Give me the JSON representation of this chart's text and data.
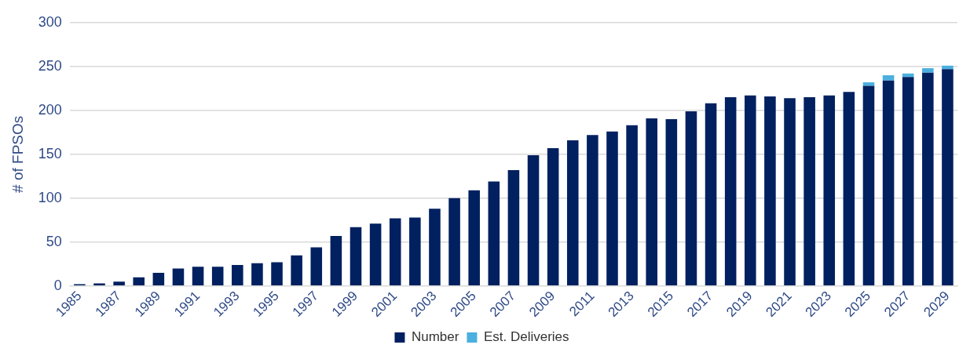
{
  "chart_data": {
    "type": "bar",
    "stacked": true,
    "ylabel": "# of FPSOs",
    "categories": [
      "1985",
      null,
      "1987",
      null,
      "1989",
      null,
      "1991",
      null,
      "1993",
      null,
      "1995",
      null,
      "1997",
      null,
      "1999",
      null,
      "2001",
      null,
      "2003",
      null,
      "2005",
      null,
      "2007",
      null,
      "2009",
      null,
      "2011",
      null,
      "2013",
      null,
      "2015",
      null,
      "2017",
      null,
      "2019",
      null,
      "2021",
      null,
      "2023",
      null,
      "2025",
      null,
      "2027",
      null,
      "2029"
    ],
    "series": [
      {
        "name": "Number",
        "color": "#002060",
        "values": [
          2,
          3,
          5,
          10,
          15,
          20,
          22,
          22,
          24,
          26,
          27,
          35,
          44,
          57,
          67,
          71,
          77,
          78,
          88,
          100,
          109,
          119,
          132,
          149,
          157,
          166,
          172,
          176,
          183,
          191,
          190,
          199,
          208,
          215,
          217,
          216,
          214,
          215,
          217,
          221,
          228,
          234,
          238,
          243,
          247
        ]
      },
      {
        "name": "Est. Deliveries",
        "color": "#4bafe0",
        "values": [
          null,
          null,
          null,
          null,
          null,
          null,
          null,
          null,
          null,
          null,
          null,
          null,
          null,
          null,
          null,
          null,
          null,
          null,
          null,
          null,
          null,
          null,
          null,
          null,
          null,
          null,
          null,
          null,
          null,
          null,
          null,
          null,
          null,
          null,
          null,
          null,
          null,
          null,
          null,
          null,
          4,
          6,
          4,
          5,
          4
        ]
      }
    ],
    "ylim": [
      0,
      300
    ],
    "yticks": [
      0,
      50,
      100,
      150,
      200,
      250,
      300
    ],
    "grid": "y",
    "legend": "bottom"
  }
}
